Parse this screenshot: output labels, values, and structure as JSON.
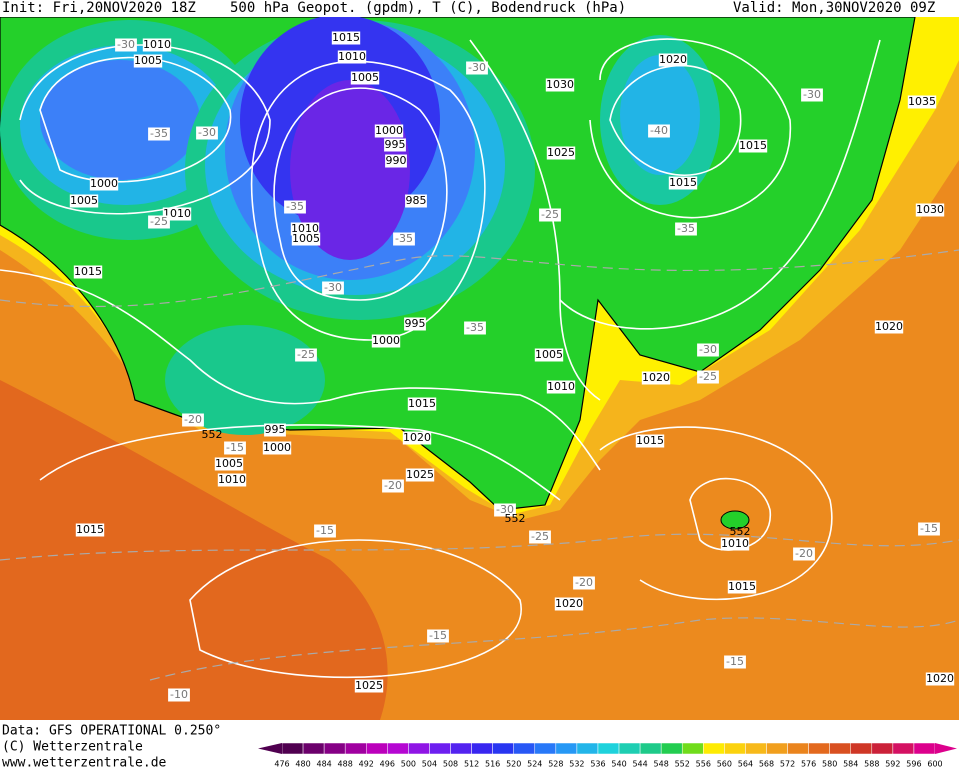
{
  "header": {
    "init": "Init: Fri,20NOV2020 18Z",
    "title": "500 hPa Geopot. (gpdm), T (C), Bodendruck (hPa)",
    "valid": "Valid: Mon,30NOV2020 09Z"
  },
  "footer": {
    "source": "Data: GFS OPERATIONAL 0.250°",
    "copyright": "(C) Wetterzentrale",
    "url": "www.wetterzentrale.de"
  },
  "legend": {
    "labels": [
      "476",
      "480",
      "484",
      "488",
      "492",
      "496",
      "500",
      "504",
      "508",
      "512",
      "516",
      "520",
      "524",
      "528",
      "532",
      "536",
      "540",
      "544",
      "548",
      "552",
      "556",
      "560",
      "564",
      "568",
      "572",
      "576",
      "580",
      "584",
      "588",
      "592",
      "596",
      "600"
    ]
  },
  "map": {
    "pressure_labels": [
      "1010",
      "1005",
      "1015",
      "1010",
      "1005",
      "1000",
      "995",
      "990",
      "985",
      "1010",
      "1005",
      "995",
      "1000",
      "1000",
      "1005",
      "1010",
      "1015",
      "1030",
      "1025",
      "1020",
      "1015",
      "1015",
      "1035",
      "1030",
      "1020",
      "1020",
      "1015",
      "1005",
      "1010",
      "1015",
      "1020",
      "1025",
      "995",
      "1000",
      "1005",
      "1010",
      "1015",
      "1010",
      "1015",
      "1020",
      "1025",
      "1020"
    ],
    "temperature_labels": [
      "-30",
      "-30",
      "-35",
      "-25",
      "-30",
      "-30",
      "-40",
      "-35",
      "-35",
      "-30",
      "-25",
      "-35",
      "-35",
      "-25",
      "-30",
      "-25",
      "-20",
      "-15",
      "-20",
      "-30",
      "-25",
      "-15",
      "-20",
      "-20",
      "-15",
      "-15",
      "-10",
      "-15"
    ],
    "height_labels": [
      "552",
      "552",
      "552"
    ]
  }
}
